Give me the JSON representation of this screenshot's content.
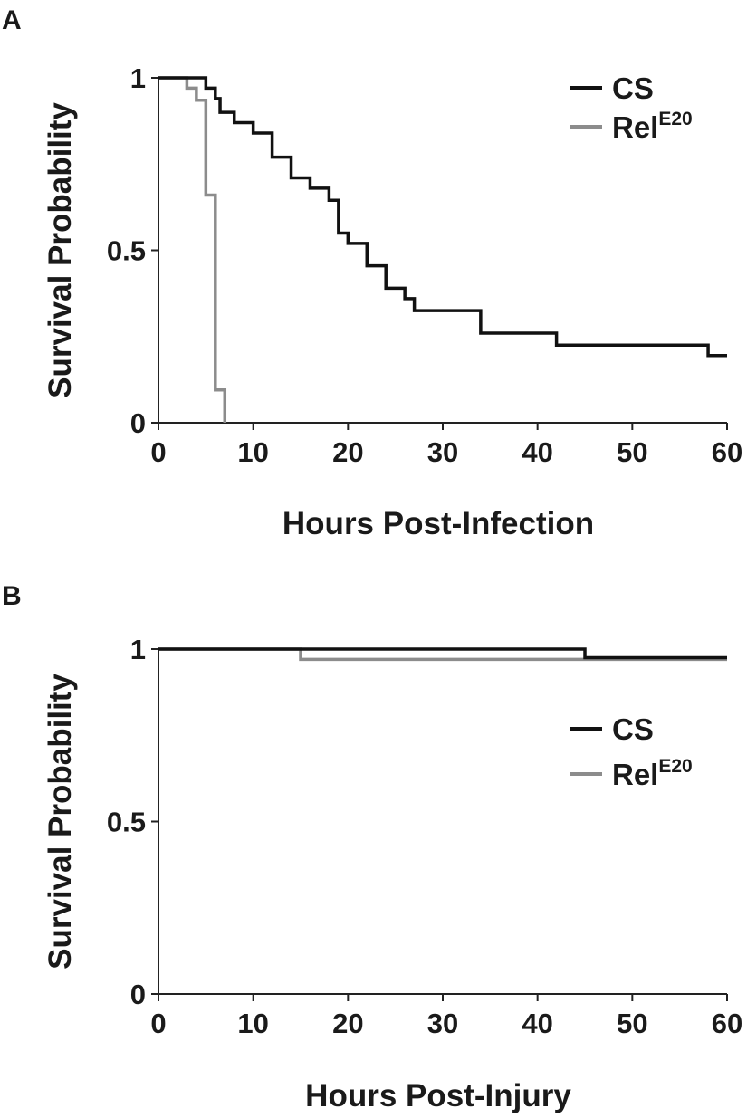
{
  "chart_data": [
    {
      "type": "line",
      "panel_label": "A",
      "xlabel": "Hours Post-Infection",
      "ylabel": "Survival Probability",
      "xlim": [
        0,
        60
      ],
      "ylim": [
        0,
        1
      ],
      "xticks": [
        {
          "value": 0,
          "label": "0"
        },
        {
          "value": 10,
          "label": "10"
        },
        {
          "value": 20,
          "label": "20"
        },
        {
          "value": 30,
          "label": "30"
        },
        {
          "value": 40,
          "label": "40"
        },
        {
          "value": 50,
          "label": "50"
        },
        {
          "value": 60,
          "label": "60"
        }
      ],
      "yticks": [
        {
          "value": 0,
          "label": "0"
        },
        {
          "value": 0.5,
          "label": "0.5"
        },
        {
          "value": 1,
          "label": "1"
        }
      ],
      "grid": false,
      "legend_position": "top-right",
      "series": [
        {
          "name": "CS",
          "name_sup": "",
          "color": "#111111",
          "step_x": [
            0,
            5,
            6,
            6.5,
            8,
            10,
            12,
            14,
            16,
            18,
            19,
            20,
            22,
            24,
            26,
            27,
            34,
            42,
            58,
            60
          ],
          "step_y": [
            1,
            0.97,
            0.94,
            0.9,
            0.87,
            0.84,
            0.77,
            0.71,
            0.68,
            0.645,
            0.55,
            0.52,
            0.455,
            0.39,
            0.36,
            0.325,
            0.26,
            0.225,
            0.195,
            0.195
          ]
        },
        {
          "name": "Rel",
          "name_sup": "E20",
          "color": "#8c8c8c",
          "step_x": [
            0,
            3,
            4,
            5,
            6,
            7,
            7
          ],
          "step_y": [
            1,
            0.97,
            0.935,
            0.66,
            0.095,
            0,
            0
          ]
        }
      ]
    },
    {
      "type": "line",
      "panel_label": "B",
      "xlabel": "Hours Post-Injury",
      "ylabel": "Survival Probability",
      "xlim": [
        0,
        60
      ],
      "ylim": [
        0,
        1
      ],
      "xticks": [
        {
          "value": 0,
          "label": "0"
        },
        {
          "value": 10,
          "label": "10"
        },
        {
          "value": 20,
          "label": "20"
        },
        {
          "value": 30,
          "label": "30"
        },
        {
          "value": 40,
          "label": "40"
        },
        {
          "value": 50,
          "label": "50"
        },
        {
          "value": 60,
          "label": "60"
        }
      ],
      "yticks": [
        {
          "value": 0,
          "label": "0"
        },
        {
          "value": 0.5,
          "label": "0.5"
        },
        {
          "value": 1,
          "label": "1"
        }
      ],
      "grid": false,
      "legend_position": "right",
      "series": [
        {
          "name": "CS",
          "name_sup": "",
          "color": "#111111",
          "step_x": [
            0,
            45,
            60
          ],
          "step_y": [
            1,
            0.975,
            0.975
          ]
        },
        {
          "name": "Rel",
          "name_sup": "E20",
          "color": "#8c8c8c",
          "step_x": [
            0,
            15,
            60
          ],
          "step_y": [
            1,
            0.97,
            0.97
          ]
        }
      ]
    }
  ]
}
